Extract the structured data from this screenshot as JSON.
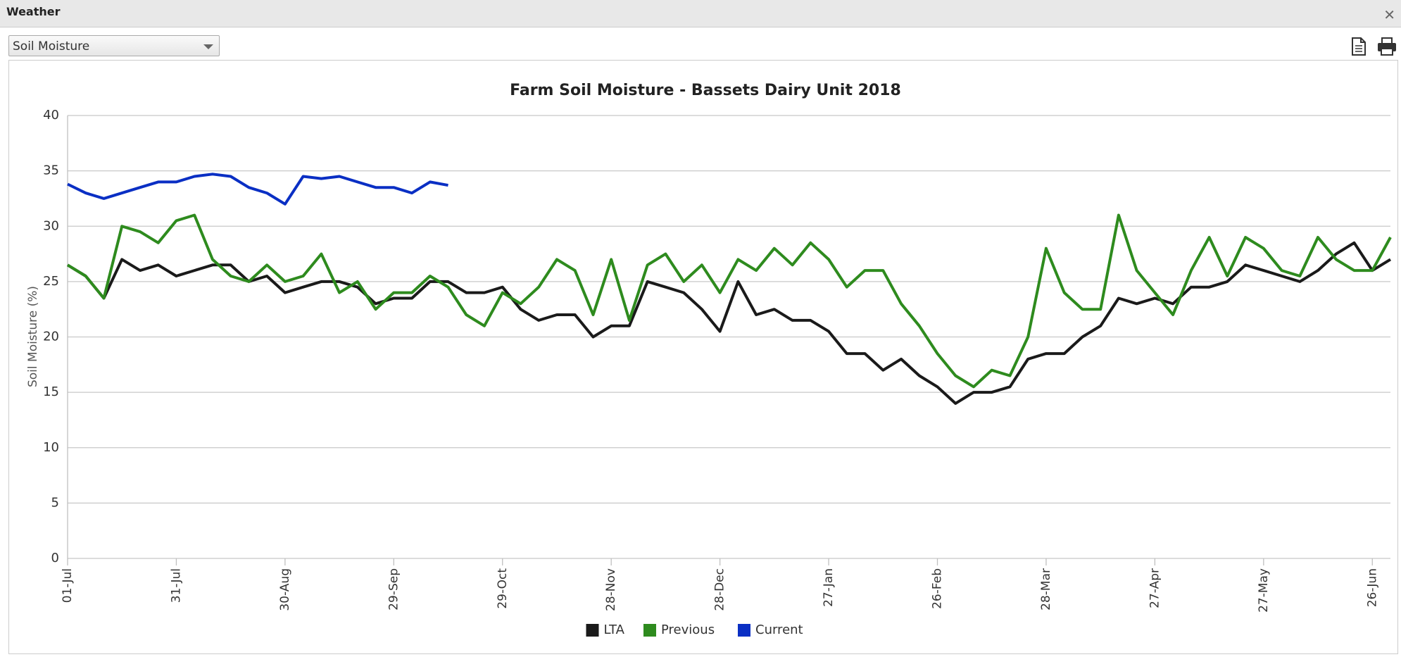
{
  "header": {
    "title": "Weather"
  },
  "dropdown": {
    "selected": "Soil Moisture"
  },
  "chart_data": {
    "type": "line",
    "title": "Farm Soil Moisture - Bassets Dairy Unit 2018",
    "y_label": "Soil Moisture (%)",
    "categories": [
      "01-Jul",
      null,
      null,
      null,
      null,
      null,
      "31-Jul",
      null,
      null,
      null,
      null,
      null,
      "30-Aug",
      null,
      null,
      null,
      null,
      null,
      "29-Sep",
      null,
      null,
      null,
      null,
      null,
      "29-Oct",
      null,
      null,
      null,
      null,
      null,
      "28-Nov",
      null,
      null,
      null,
      null,
      null,
      "28-Dec",
      null,
      null,
      null,
      null,
      null,
      "27-Jan",
      null,
      null,
      null,
      null,
      null,
      "26-Feb",
      null,
      null,
      null,
      null,
      null,
      "28-Mar",
      null,
      null,
      null,
      null,
      null,
      "27-Apr",
      null,
      null,
      null,
      null,
      null,
      "27-May",
      null,
      null,
      null,
      null,
      null,
      "26-Jun",
      null
    ],
    "series": [
      {
        "name": "LTA",
        "color": "#1a1a1a",
        "values": [
          26.5,
          25.5,
          23.5,
          27,
          26,
          26.5,
          25.5,
          26,
          26.5,
          26.5,
          25,
          25.5,
          24,
          24.5,
          25,
          25,
          24.5,
          23,
          23.5,
          23.5,
          25,
          25,
          24,
          24,
          24.5,
          22.5,
          21.5,
          22,
          22,
          20,
          21,
          21,
          25,
          24.5,
          24,
          22.5,
          20.5,
          25,
          22,
          22.5,
          21.5,
          21.5,
          20.5,
          18.5,
          18.5,
          17,
          18,
          16.5,
          15.5,
          14,
          15,
          15,
          15.5,
          18,
          18.5,
          18.5,
          20,
          21,
          23.5,
          23,
          23.5,
          23,
          24.5,
          24.5,
          25,
          26.5,
          26,
          25.5,
          25,
          26,
          27.5,
          28.5,
          26,
          27
        ]
      },
      {
        "name": "Previous",
        "color": "#2e8b1e",
        "values": [
          26.5,
          25.5,
          23.5,
          30,
          29.5,
          28.5,
          30.5,
          31,
          27,
          25.5,
          25,
          26.5,
          25,
          25.5,
          27.5,
          24,
          25,
          22.5,
          24,
          24,
          25.5,
          24.5,
          22,
          21,
          24,
          23,
          24.5,
          27,
          26,
          22,
          27,
          21.5,
          26.5,
          27.5,
          25,
          26.5,
          24,
          27,
          26,
          28,
          26.5,
          28.5,
          27,
          24.5,
          26,
          26,
          23,
          21,
          18.5,
          16.5,
          15.5,
          17,
          16.5,
          20,
          28,
          24,
          22.5,
          22.5,
          31,
          26,
          24,
          22,
          26,
          29,
          25.5,
          29,
          28,
          26,
          25.5,
          29,
          27,
          26,
          26,
          29
        ]
      },
      {
        "name": "Current",
        "color": "#0a2fc4",
        "values": [
          33.8,
          33,
          32.5,
          33,
          33.5,
          34,
          34,
          34.5,
          34.7,
          34.5,
          33.5,
          33,
          32,
          34.5,
          34.3,
          34.5,
          34,
          33.5,
          33.5,
          33,
          34,
          33.7,
          null,
          null,
          null,
          null,
          null,
          null,
          null,
          null,
          null,
          null,
          null,
          null,
          null,
          null,
          null,
          null,
          null,
          null,
          null,
          null,
          null,
          null,
          null,
          null,
          null,
          null,
          null,
          null,
          null,
          null,
          null,
          null,
          null,
          null,
          null,
          null,
          null,
          null,
          null,
          null,
          null,
          null,
          null,
          null,
          null,
          null,
          null,
          null,
          null,
          null,
          null,
          null
        ]
      }
    ],
    "ylim": [
      0,
      40
    ],
    "yticks": [
      0,
      5,
      10,
      15,
      20,
      25,
      30,
      35,
      40
    ],
    "grid": true
  }
}
